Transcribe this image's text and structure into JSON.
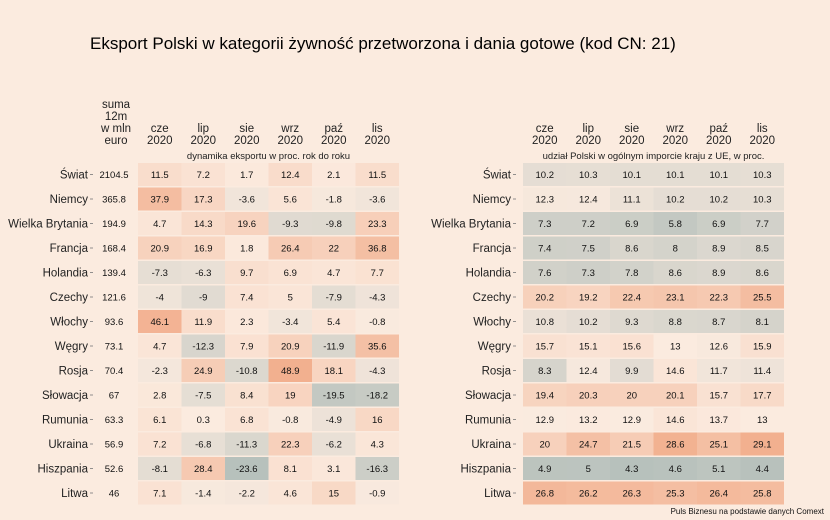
{
  "title": "Eksport Polski w kategorii żywność przetworzona i dania gotowe (kod CN: 21)",
  "source": "Puls Biznesu na podstawie danych Comext",
  "chart_data": [
    {
      "type": "heatmap",
      "subtitle": "dynamika eksportu w proc. rok do roku",
      "sum_header": [
        "suma",
        "12m",
        "w mln",
        "euro"
      ],
      "columns": [
        [
          "cze",
          "2020"
        ],
        [
          "lip",
          "2020"
        ],
        [
          "sie",
          "2020"
        ],
        [
          "wrz",
          "2020"
        ],
        [
          "paź",
          "2020"
        ],
        [
          "lis",
          "2020"
        ]
      ],
      "rows": [
        "Świat",
        "Niemcy",
        "Wielka Brytania",
        "Francja",
        "Holandia",
        "Czechy",
        "Włochy",
        "Węgry",
        "Rosja",
        "Słowacja",
        "Rumunia",
        "Ukraina",
        "Hiszpania",
        "Litwa"
      ],
      "sum": [
        2104.5,
        365.8,
        194.9,
        168.4,
        139.4,
        121.6,
        93.6,
        73.1,
        70.4,
        67,
        63.3,
        56.9,
        52.6,
        46
      ],
      "values": [
        [
          11.5,
          7.2,
          1.7,
          12.4,
          2.1,
          11.5
        ],
        [
          37.9,
          17.3,
          -3.6,
          5.6,
          -1.8,
          -3.6
        ],
        [
          4.7,
          14.3,
          19.6,
          -9.3,
          -9.8,
          23.3
        ],
        [
          20.9,
          16.9,
          1.8,
          26.4,
          22,
          36.8
        ],
        [
          -7.3,
          -6.3,
          9.7,
          6.9,
          4.7,
          7.7
        ],
        [
          -4,
          -9,
          7.4,
          5,
          -7.9,
          -4.3
        ],
        [
          46.1,
          11.9,
          2.3,
          -3.4,
          5.4,
          -0.8
        ],
        [
          4.7,
          -12.3,
          7.9,
          20.9,
          -11.9,
          35.6
        ],
        [
          -2.3,
          24.9,
          -10.8,
          48.9,
          18.1,
          -4.3
        ],
        [
          2.8,
          -7.5,
          8.4,
          19,
          -19.5,
          -18.2
        ],
        [
          6.1,
          0.3,
          6.8,
          -0.8,
          -4.9,
          16
        ],
        [
          7.2,
          -6.8,
          -11.3,
          22.3,
          -6.2,
          4.3
        ],
        [
          -8.1,
          28.4,
          -23.6,
          8.1,
          3.1,
          -16.3
        ],
        [
          7.1,
          -1.4,
          -2.2,
          4.6,
          15,
          -0.9
        ]
      ]
    },
    {
      "type": "heatmap",
      "subtitle": "udział Polski w ogólnym imporcie kraju z UE, w proc.",
      "columns": [
        [
          "cze",
          "2020"
        ],
        [
          "lip",
          "2020"
        ],
        [
          "sie",
          "2020"
        ],
        [
          "wrz",
          "2020"
        ],
        [
          "paź",
          "2020"
        ],
        [
          "lis",
          "2020"
        ]
      ],
      "rows": [
        "Świat",
        "Niemcy",
        "Wielka Brytania",
        "Francja",
        "Holandia",
        "Czechy",
        "Włochy",
        "Węgry",
        "Rosja",
        "Słowacja",
        "Rumunia",
        "Ukraina",
        "Hiszpania",
        "Litwa"
      ],
      "values": [
        [
          10.2,
          10.3,
          10.1,
          10.1,
          10.1,
          10.3
        ],
        [
          12.3,
          12.4,
          11.1,
          10.2,
          10.2,
          10.3
        ],
        [
          7.3,
          7.2,
          6.9,
          5.8,
          6.9,
          7.7
        ],
        [
          7.4,
          7.5,
          8.6,
          8,
          8.9,
          8.5
        ],
        [
          7.6,
          7.3,
          7.8,
          8.6,
          8.9,
          8.6
        ],
        [
          20.2,
          19.2,
          22.4,
          23.1,
          22.3,
          25.5
        ],
        [
          10.8,
          10.2,
          9.3,
          8.8,
          8.7,
          8.1
        ],
        [
          15.7,
          15.1,
          15.6,
          13,
          12.6,
          15.9
        ],
        [
          8.3,
          12.4,
          9.9,
          14.6,
          11.7,
          11.4
        ],
        [
          19.4,
          20.3,
          20,
          20.1,
          15.7,
          17.7
        ],
        [
          12.9,
          13.2,
          12.9,
          14.6,
          13.7,
          13
        ],
        [
          20,
          24.7,
          21.5,
          28.6,
          25.1,
          29.1
        ],
        [
          4.9,
          5,
          4.3,
          4.6,
          5.1,
          4.4
        ],
        [
          26.8,
          26.2,
          26.3,
          25.3,
          26.4,
          25.8
        ]
      ]
    }
  ],
  "colors": {
    "background": "#fbebdf",
    "low": "#b7c1bc",
    "mid": "#fbebdf",
    "high": "#f2b08f"
  }
}
